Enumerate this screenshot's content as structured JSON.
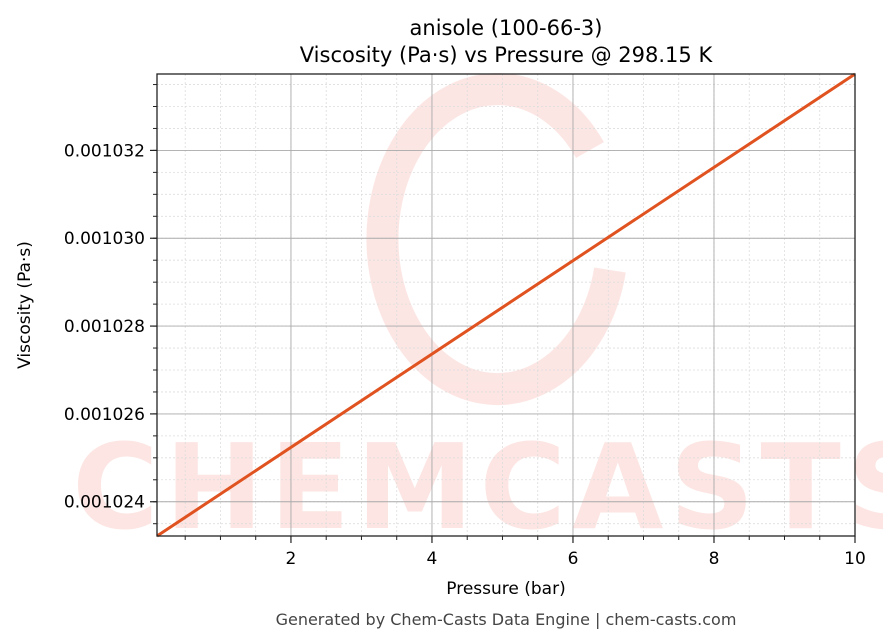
{
  "chart_data": {
    "type": "line",
    "title": "anisole (100-66-3)",
    "subtitle": "Viscosity (Pa·s) vs Pressure @ 298.15 K",
    "xlabel": "Pressure (bar)",
    "ylabel": "Viscosity (Pa·s)",
    "xlim": [
      0.1,
      10
    ],
    "ylim": [
      0.00102322,
      0.00103374
    ],
    "x_ticks": [
      2,
      4,
      6,
      8,
      10
    ],
    "x_tick_labels": [
      "2",
      "4",
      "6",
      "8",
      "10"
    ],
    "y_ticks": [
      0.001024,
      0.001026,
      0.001028,
      0.00103,
      0.001032
    ],
    "y_tick_labels": [
      "0.001024",
      "0.001026",
      "0.001028",
      "0.001030",
      "0.001032"
    ],
    "grid": true,
    "series": [
      {
        "x": [
          0.1,
          10
        ],
        "y": [
          0.00102322,
          0.00103374
        ],
        "color": "#e05320"
      }
    ],
    "footer": "Generated by Chem-Casts Data Engine | chem-casts.com",
    "watermark": "CHEMCASTS"
  }
}
